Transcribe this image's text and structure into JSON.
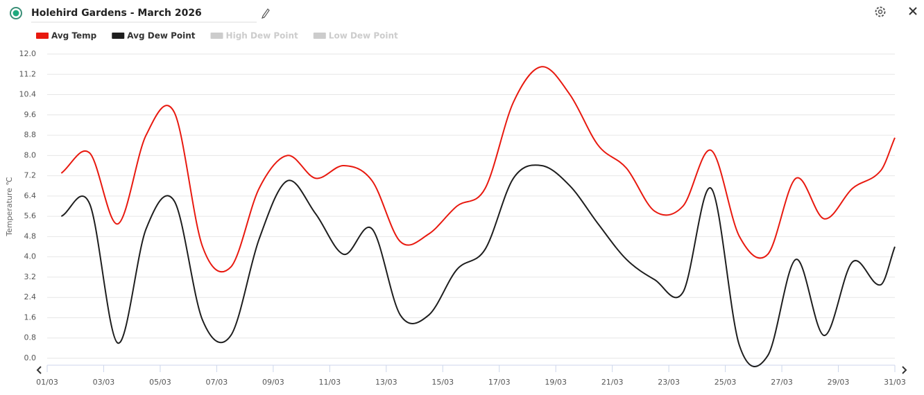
{
  "chart_data": {
    "type": "line",
    "title": "Holehird Gardens - March 2026",
    "y_label": "Temperature ℃",
    "x": [
      1.5,
      2.5,
      3.5,
      4.5,
      5.5,
      6.5,
      7.5,
      8.5,
      9.5,
      10.5,
      11.5,
      12.5,
      13.5,
      14.5,
      15.5,
      16.5,
      17.5,
      18.5,
      19.5,
      20.5,
      21.5,
      22.5,
      23.5,
      24.5,
      25.5,
      26.5,
      27.5,
      28.5,
      29.5,
      30.5,
      31
    ],
    "series": [
      {
        "name": "Avg Temp",
        "color": "#e8190f",
        "hidden": false,
        "values": [
          7.3,
          8.1,
          5.3,
          8.8,
          9.7,
          4.4,
          3.6,
          6.7,
          8.0,
          7.1,
          7.6,
          7.0,
          4.6,
          4.9,
          6.0,
          6.7,
          10.1,
          11.5,
          10.4,
          8.4,
          7.5,
          5.8,
          6.0,
          8.2,
          4.8,
          4.1,
          7.1,
          5.5,
          6.7,
          7.4,
          8.7
        ]
      },
      {
        "name": "Avg Dew Point",
        "color": "#1e1e1e",
        "hidden": false,
        "values": [
          5.6,
          6.1,
          0.6,
          5.1,
          6.2,
          1.5,
          0.9,
          4.7,
          7.0,
          5.7,
          4.1,
          5.1,
          1.7,
          1.7,
          3.5,
          4.3,
          7.1,
          7.6,
          6.8,
          5.3,
          3.9,
          3.1,
          2.6,
          6.7,
          0.5,
          0.1,
          3.9,
          0.9,
          3.8,
          2.9,
          4.4
        ]
      },
      {
        "name": "High Dew Point",
        "color": "#cccccc",
        "hidden": true,
        "values": [
          null,
          null,
          null,
          null,
          null,
          null,
          null,
          null,
          null,
          null,
          null,
          null,
          null,
          null,
          null,
          null,
          null,
          null,
          null,
          null,
          null,
          null,
          null,
          null,
          null,
          null,
          null,
          null,
          null,
          null,
          null
        ]
      },
      {
        "name": "Low Dew Point",
        "color": "#cccccc",
        "hidden": true,
        "values": [
          null,
          null,
          null,
          null,
          null,
          null,
          null,
          null,
          null,
          null,
          null,
          null,
          null,
          null,
          null,
          null,
          null,
          null,
          null,
          null,
          null,
          null,
          null,
          null,
          null,
          null,
          null,
          null,
          null,
          null,
          null
        ]
      }
    ],
    "xlim": [
      1,
      31
    ],
    "xticks": [
      {
        "value": 1,
        "label": "01/03"
      },
      {
        "value": 3,
        "label": "03/03"
      },
      {
        "value": 5,
        "label": "05/03"
      },
      {
        "value": 7,
        "label": "07/03"
      },
      {
        "value": 9,
        "label": "09/03"
      },
      {
        "value": 11,
        "label": "11/03"
      },
      {
        "value": 13,
        "label": "13/03"
      },
      {
        "value": 15,
        "label": "15/03"
      },
      {
        "value": 17,
        "label": "17/03"
      },
      {
        "value": 19,
        "label": "19/03"
      },
      {
        "value": 21,
        "label": "21/03"
      },
      {
        "value": 23,
        "label": "23/03"
      },
      {
        "value": 25,
        "label": "25/03"
      },
      {
        "value": 27,
        "label": "27/03"
      },
      {
        "value": 29,
        "label": "29/03"
      },
      {
        "value": 31,
        "label": "31/03"
      }
    ],
    "ylim": [
      0,
      12
    ],
    "yticks": [
      {
        "value": 0,
        "label": "0.0"
      },
      0.8,
      1.6,
      2.4,
      3.2,
      {
        "value": 4,
        "label": "4.0"
      },
      4.8,
      5.6,
      6.4,
      7.2,
      {
        "value": 8,
        "label": "8.0"
      },
      8.8,
      9.6,
      10.4,
      11.2,
      {
        "value": 12,
        "label": "12.0"
      }
    ],
    "grid": true
  }
}
